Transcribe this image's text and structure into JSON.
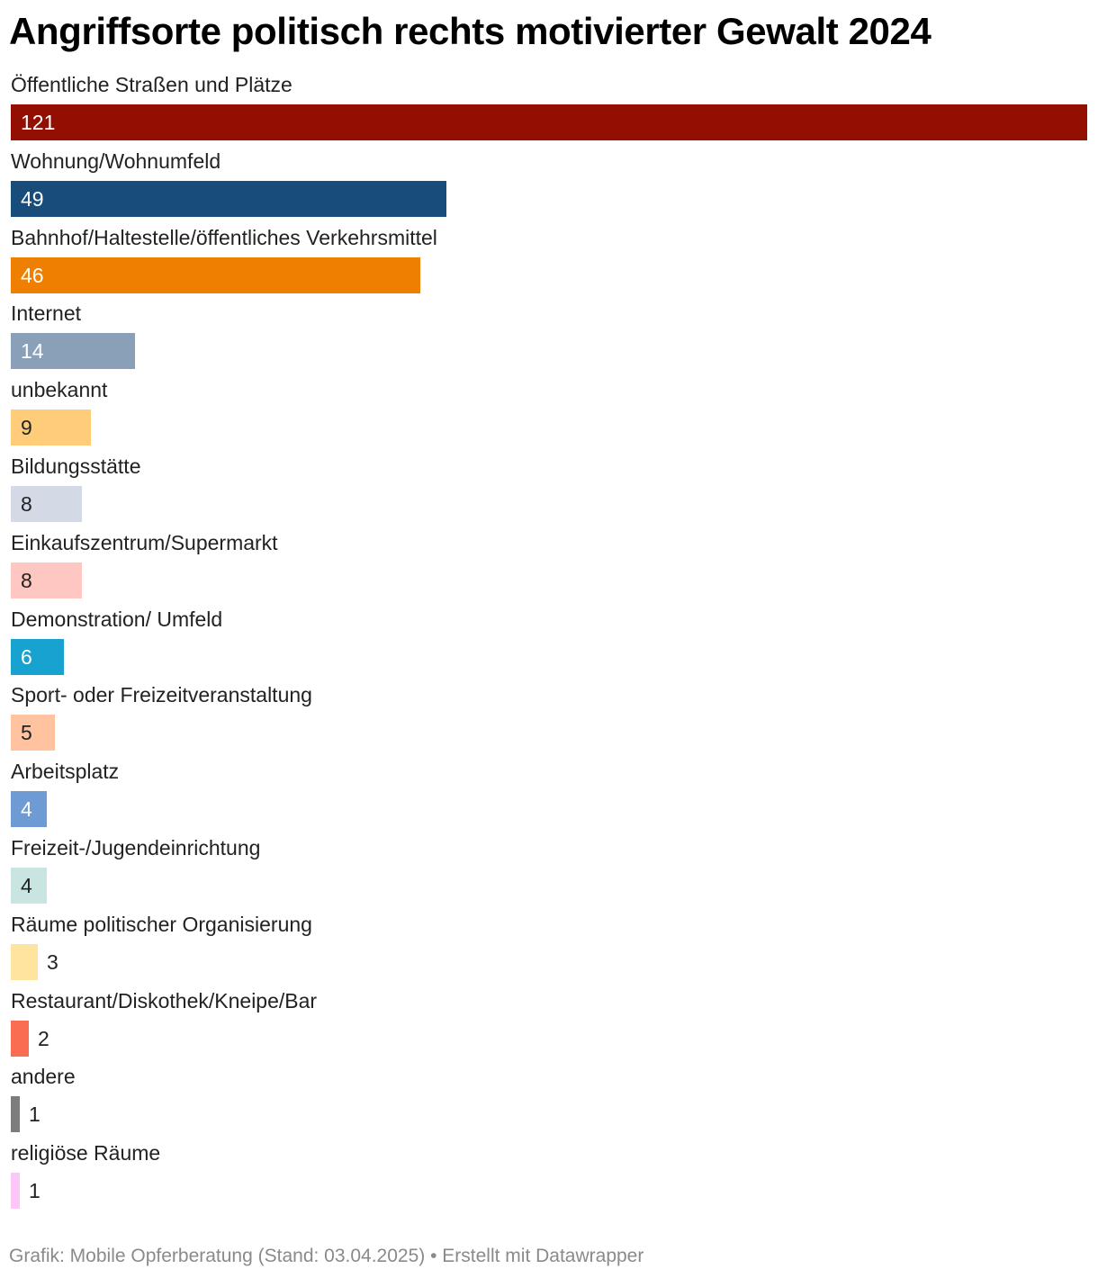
{
  "header": {
    "title": "Angriffsorte politisch rechts motivierter Gewalt 2024"
  },
  "footer": {
    "source": "Grafik: Mobile Opferberatung (Stand: 03.04.2025) • Erstellt mit Datawrapper"
  },
  "chart_data": {
    "type": "bar",
    "orientation": "horizontal",
    "title": "Angriffsorte politisch rechts motivierter Gewalt 2024",
    "xlabel": "",
    "ylabel": "",
    "grid": false,
    "legend": "none",
    "categories": [
      "Öffentliche Straßen und Plätze",
      "Wohnung/Wohnumfeld",
      "Bahnhof/Haltestelle/öffentliches Verkehrsmittel",
      "Internet",
      "unbekannt",
      "Bildungsstätte",
      "Einkaufszentrum/Supermarkt",
      "Demonstration/ Umfeld",
      "Sport- oder Freizeitveranstaltung",
      "Arbeitsplatz",
      "Freizeit-/Jugendeinrichtung",
      "Räume politischer Organisierung",
      "Restaurant/Diskothek/Kneipe/Bar",
      "andere",
      "religiöse Räume"
    ],
    "values": [
      121,
      49,
      46,
      14,
      9,
      8,
      8,
      6,
      5,
      4,
      4,
      3,
      2,
      1,
      1
    ],
    "colors": [
      "#920f02",
      "#174c7b",
      "#ef7f00",
      "#8a9fb8",
      "#ffcc79",
      "#d3d9e5",
      "#ffc7c1",
      "#18a2cf",
      "#ffc49f",
      "#6e9bd4",
      "#c8e5e2",
      "#ffe49f",
      "#fb6d52",
      "#7d7d7d",
      "#fcc7f7"
    ],
    "label_colors": [
      "#ffffff",
      "#ffffff",
      "#ffffff",
      "#ffffff",
      "#222222",
      "#222222",
      "#222222",
      "#ffffff",
      "#222222",
      "#ffffff",
      "#222222",
      "#222222",
      "#222222",
      "#222222",
      "#222222"
    ],
    "xlim": [
      0,
      121
    ]
  }
}
